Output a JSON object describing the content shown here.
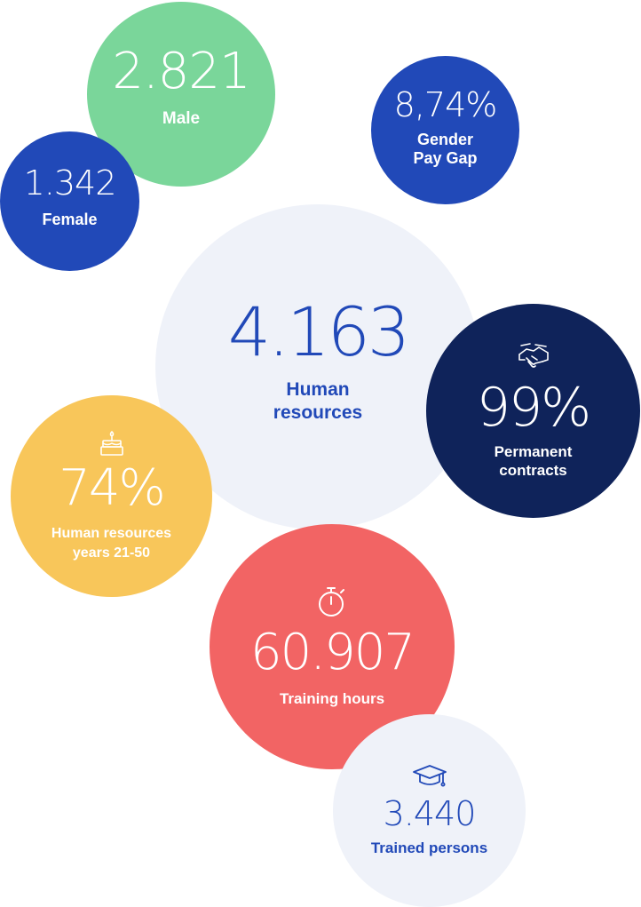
{
  "stats": {
    "male": {
      "value": "2.821",
      "label": "Male",
      "color": "#7ad69a"
    },
    "female": {
      "value": "1.342",
      "label": "Female",
      "color": "#2149b8"
    },
    "gender_pay_gap": {
      "value": "8,74%",
      "label_line1": "Gender",
      "label_line2": "Pay Gap",
      "color": "#2149b8"
    },
    "human_resources": {
      "value": "4.163",
      "label_line1": "Human",
      "label_line2": "resources",
      "color": "#eff2f9"
    },
    "permanent_contracts": {
      "value": "99%",
      "label_line1": "Permanent",
      "label_line2": "contracts",
      "icon": "handshake-icon",
      "color": "#0f235a"
    },
    "age_range": {
      "value": "74%",
      "label_line1": "Human resources",
      "label_line2": "years 21-50",
      "icon": "birthday-cake-icon",
      "color": "#f8c65a"
    },
    "training_hours": {
      "value": "60.907",
      "label": "Training hours",
      "icon": "stopwatch-icon",
      "color": "#f26464"
    },
    "trained_persons": {
      "value": "3.440",
      "label": "Trained persons",
      "icon": "graduation-cap-icon",
      "color": "#eff2f9"
    }
  }
}
